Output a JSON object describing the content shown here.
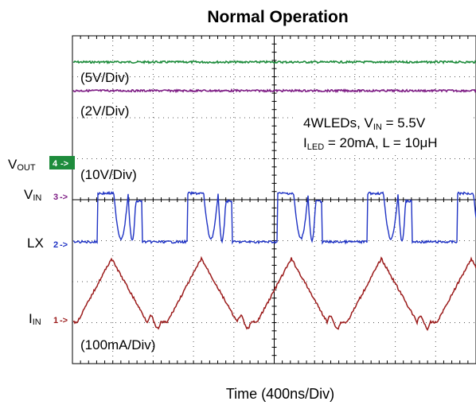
{
  "chart_data": {
    "type": "line",
    "title": "Normal Operation",
    "xlabel": "Time (400ns/Div)",
    "x_divisions": 10,
    "y_divisions": 8,
    "grid": true,
    "conditions": {
      "line1": "4WLEDs, V",
      "line1_sub": "IN",
      "line1_rest": " = 5.5V",
      "line2": "I",
      "line2_sub": "LED",
      "line2_rest": " = 20mA, L = 10μH"
    },
    "channels": [
      {
        "name": "V",
        "name_sub": "OUT",
        "marker": "4",
        "scale": "(10V/Div)",
        "color": "#1e8c3c"
      },
      {
        "name": "V",
        "name_sub": "IN",
        "marker": "3",
        "scale": "(2V/Div)",
        "color": "#7f1f86"
      },
      {
        "name": "LX",
        "name_sub": "",
        "marker": "2",
        "scale": "(5V/Div)",
        "color": "#1f33c4"
      },
      {
        "name": "I",
        "name_sub": "IN",
        "marker": "1",
        "scale": "(100mA/Div)",
        "color": "#9b1b1b"
      }
    ]
  }
}
